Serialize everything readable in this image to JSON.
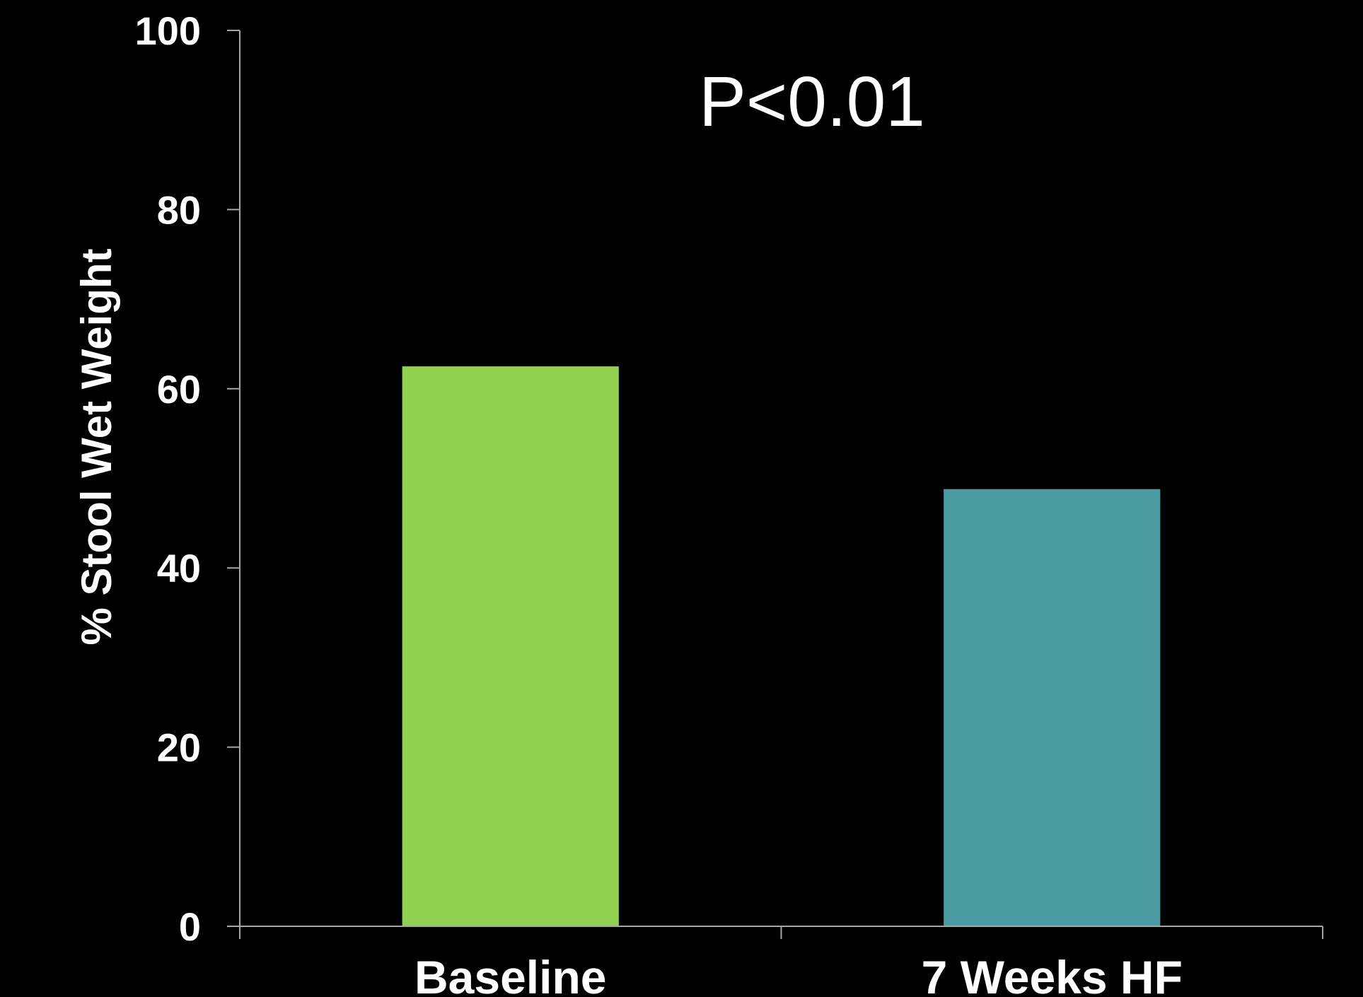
{
  "chart_data": {
    "type": "bar",
    "categories": [
      "Baseline",
      "7 Weeks HF"
    ],
    "values": [
      62.5,
      48.8
    ],
    "bar_colors": [
      "#92d050",
      "#4a9aa1"
    ],
    "ylabel": "% Stool Wet Weight",
    "xlabel": "",
    "ylim": [
      0,
      100
    ],
    "yticks": [
      "0",
      "20",
      "40",
      "60",
      "80",
      "100"
    ],
    "annotation": "P<0.01",
    "background": "#000000",
    "axis_color": "#a6a6a6",
    "text_color": "#ffffff",
    "grid": false,
    "legend": "none"
  }
}
